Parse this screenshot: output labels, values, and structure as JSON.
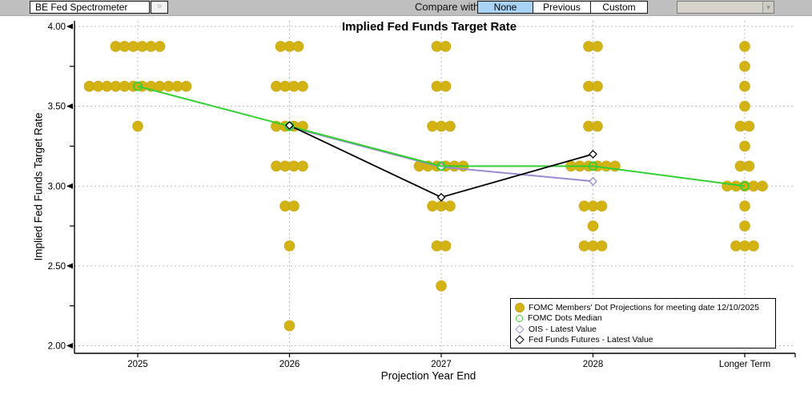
{
  "toolbar": {
    "app_selector": "BE Fed Spectrometer",
    "expand_button": "»",
    "compare_label": "Compare with",
    "compare_options": [
      {
        "label": "None",
        "selected": true
      },
      {
        "label": "Previous",
        "selected": false
      },
      {
        "label": "Custom",
        "selected": false
      }
    ],
    "compare_dropdown_value": "",
    "selected_color": "#a9d3f5"
  },
  "chart_data": {
    "type": "scatter",
    "title": "Implied Fed Funds Target Rate",
    "xlabel": "Projection Year End",
    "ylabel": "Implied Fed Funds Target Rate",
    "categories": [
      "2025",
      "2026",
      "2027",
      "2028",
      "Longer Term"
    ],
    "ylim": [
      2.0,
      4.0
    ],
    "yticks": [
      "4.00",
      "3.50",
      "3.00",
      "2.50",
      "2.00"
    ],
    "ytick_values": [
      4.0,
      3.5,
      3.0,
      2.5,
      2.0
    ],
    "grid": true,
    "legend_position": "bottom-right",
    "colors": {
      "dots": "#d3b213",
      "median": "#33d033",
      "ois": "#9b8ad2",
      "futures": "#000000",
      "grid": "#bcbcbc"
    },
    "dot_series": {
      "name": "FOMC Members' Dot Projections for meeting date 12/10/2025",
      "marker": "filled-circle",
      "columns": [
        {
          "category": "2025",
          "levels": [
            {
              "rate": 3.875,
              "count": 6
            },
            {
              "rate": 3.625,
              "count": 12
            },
            {
              "rate": 3.375,
              "count": 1
            }
          ]
        },
        {
          "category": "2026",
          "levels": [
            {
              "rate": 3.875,
              "count": 3
            },
            {
              "rate": 3.625,
              "count": 4
            },
            {
              "rate": 3.375,
              "count": 4
            },
            {
              "rate": 3.125,
              "count": 4
            },
            {
              "rate": 2.875,
              "count": 2
            },
            {
              "rate": 2.625,
              "count": 1
            },
            {
              "rate": 2.125,
              "count": 1
            }
          ]
        },
        {
          "category": "2027",
          "levels": [
            {
              "rate": 3.875,
              "count": 2
            },
            {
              "rate": 3.625,
              "count": 2
            },
            {
              "rate": 3.375,
              "count": 3
            },
            {
              "rate": 3.125,
              "count": 6
            },
            {
              "rate": 2.875,
              "count": 3
            },
            {
              "rate": 2.625,
              "count": 2
            },
            {
              "rate": 2.375,
              "count": 1
            }
          ]
        },
        {
          "category": "2028",
          "levels": [
            {
              "rate": 3.875,
              "count": 2
            },
            {
              "rate": 3.625,
              "count": 2
            },
            {
              "rate": 3.375,
              "count": 2
            },
            {
              "rate": 3.125,
              "count": 6
            },
            {
              "rate": 2.875,
              "count": 3
            },
            {
              "rate": 2.75,
              "count": 1
            },
            {
              "rate": 2.625,
              "count": 3
            }
          ]
        },
        {
          "category": "Longer Term",
          "levels": [
            {
              "rate": 3.875,
              "count": 1
            },
            {
              "rate": 3.75,
              "count": 1
            },
            {
              "rate": 3.625,
              "count": 1
            },
            {
              "rate": 3.5,
              "count": 1
            },
            {
              "rate": 3.375,
              "count": 2
            },
            {
              "rate": 3.25,
              "count": 1
            },
            {
              "rate": 3.125,
              "count": 2
            },
            {
              "rate": 3.0,
              "count": 5
            },
            {
              "rate": 2.875,
              "count": 1
            },
            {
              "rate": 2.75,
              "count": 1
            },
            {
              "rate": 2.625,
              "count": 3
            }
          ]
        }
      ]
    },
    "line_series": [
      {
        "name": "FOMC Dots Median",
        "key": "median",
        "marker": "open-circle",
        "x": [
          "2025",
          "2026",
          "2027",
          "2028",
          "Longer Term"
        ],
        "values": [
          3.625,
          3.375,
          3.125,
          3.125,
          3.0
        ]
      },
      {
        "name": "OIS - Latest Value",
        "key": "ois",
        "marker": "open-diamond",
        "x": [
          "2026",
          "2027",
          "2028"
        ],
        "values": [
          3.37,
          3.12,
          3.03
        ]
      },
      {
        "name": "Fed Funds Futures - Latest Value",
        "key": "futures",
        "marker": "open-diamond",
        "x": [
          "2026",
          "2027",
          "2028"
        ],
        "values": [
          3.38,
          2.93,
          3.2
        ]
      }
    ]
  }
}
